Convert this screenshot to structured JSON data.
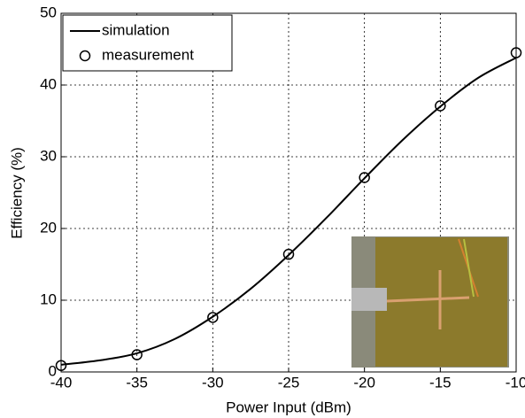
{
  "chart_data": {
    "type": "line",
    "xlabel": "Power Input (dBm)",
    "ylabel": "Efficiency (%)",
    "xlim": [
      -40,
      -10
    ],
    "xticks": [
      -40,
      -35,
      -30,
      -25,
      -20,
      -15,
      -10
    ],
    "ylim": [
      0,
      50
    ],
    "yticks": [
      0,
      10,
      20,
      30,
      40,
      50
    ],
    "grid": true,
    "legend": "upper left",
    "series": [
      {
        "name": "simulation",
        "color": "#000000",
        "style": "line",
        "x": [
          -40,
          -37.5,
          -35,
          -32.5,
          -30,
          -27.5,
          -25,
          -22.5,
          -20,
          -17.5,
          -15,
          -12.5,
          -10
        ],
        "values": [
          1.0,
          1.6,
          2.6,
          4.6,
          7.7,
          11.6,
          16.3,
          21.5,
          27.0,
          32.3,
          37.0,
          41.0,
          43.8
        ]
      },
      {
        "name": "measurement",
        "color": "#000000",
        "style": "marker",
        "x": [
          -40,
          -35,
          -30,
          -25,
          -20,
          -15,
          -10
        ],
        "values": [
          0.9,
          2.4,
          7.6,
          16.4,
          27.1,
          37.1,
          44.5
        ]
      }
    ]
  }
}
